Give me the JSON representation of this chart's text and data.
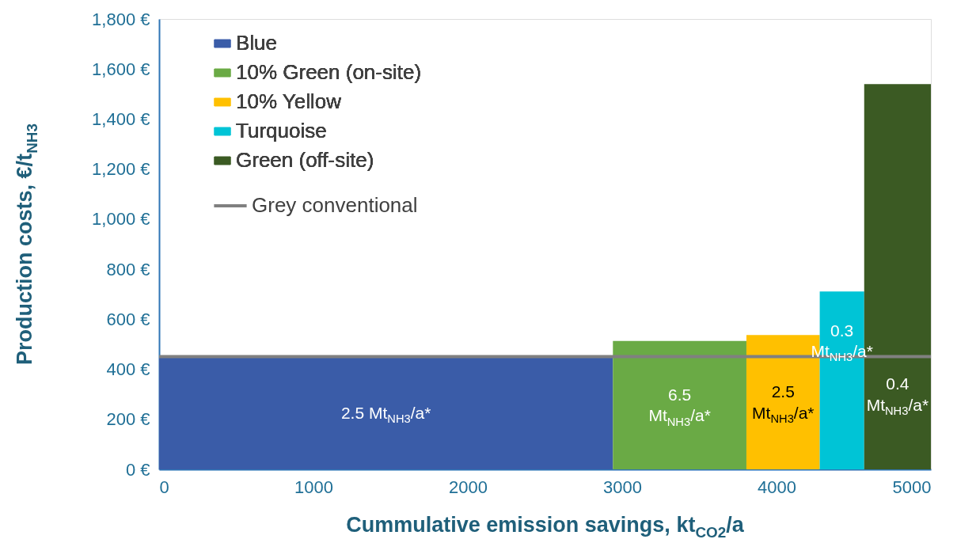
{
  "chart_data": {
    "type": "area",
    "xlabel": "Cummulative emission savings, kt$_{CO2}$/a",
    "ylabel": "Production costs, €/t$_{NH3}$",
    "series": [
      {
        "name": "Blue",
        "color": "#3a5ca8",
        "x": [
          0,
          2940
        ],
        "values": [
          450,
          450
        ]
      },
      {
        "name": "10% Green (on-site)",
        "color": "#6aaa45",
        "x": [
          2940,
          3805
        ],
        "values": [
          513,
          513
        ]
      },
      {
        "name": "10% Yellow",
        "color": "#ffc000",
        "x": [
          3805,
          4280
        ],
        "values": [
          537,
          537
        ]
      },
      {
        "name": "Turquoise",
        "color": "#00c4d6",
        "x": [
          4280,
          4568
        ],
        "values": [
          711,
          711
        ]
      },
      {
        "name": "Green (off-site)",
        "color": "#3b5a23",
        "x": [
          4568,
          5000
        ],
        "values": [
          1540,
          1540
        ]
      },
      {
        "name": "Grey conventional",
        "type": "line",
        "color": "#808080",
        "x": [
          0,
          5000
        ],
        "values": [
          451,
          451
        ]
      }
    ],
    "annotations": [
      "2.5 Mt$_{NH3}$/a*",
      "6.5\nMt$_{NH3}$/a*",
      "2.5\nMt$_{NH3}$/a*",
      "0.3\nMt$_{NH3}$/a*",
      "0.4\nMt$_{NH3}$/a*"
    ],
    "xlim": [
      0,
      5000
    ],
    "xticks": [
      0,
      1000,
      2000,
      3000,
      4000,
      5000
    ],
    "ylim": [
      0,
      1800
    ],
    "yticks": [
      {
        "value": 0,
        "label": "0 €"
      },
      {
        "value": 200,
        "label": "200 €"
      },
      {
        "value": 400,
        "label": "400 €"
      },
      {
        "value": 600,
        "label": "600 €"
      },
      {
        "value": 800,
        "label": "800 €"
      },
      {
        "value": 1000,
        "label": "1,000 €"
      },
      {
        "value": 1200,
        "label": "1,200 €"
      },
      {
        "value": 1400,
        "label": "1,400 €"
      },
      {
        "value": 1600,
        "label": "1,600 €"
      },
      {
        "value": 1800,
        "label": "1,800 €"
      }
    ],
    "grid": false,
    "legend": "top left"
  }
}
